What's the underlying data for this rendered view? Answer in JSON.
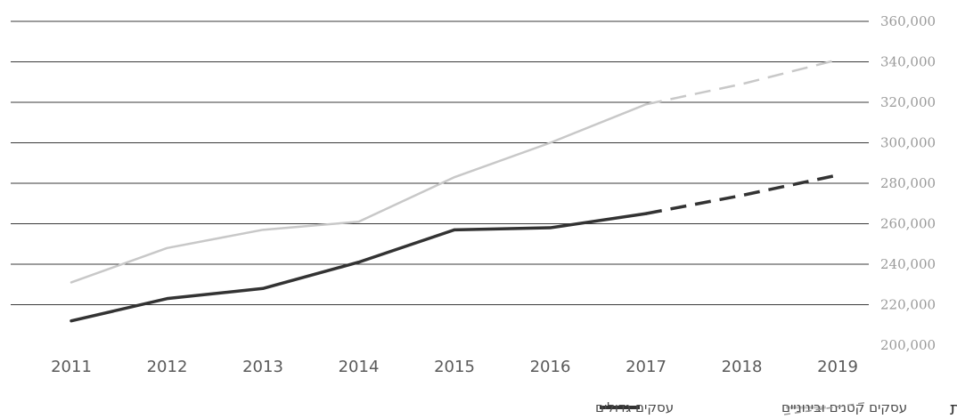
{
  "chart_data": {
    "type": "line",
    "x": [
      "2011",
      "2012",
      "2013",
      "2014",
      "2015",
      "2016",
      "2017",
      "2018",
      "2019"
    ],
    "y_ticks": [
      "200,000",
      "220,000",
      "240,000",
      "260,000",
      "280,000",
      "300,000",
      "320,000",
      "340,000",
      "360,000"
    ],
    "ylim": [
      200000,
      360000
    ],
    "y_axis_side": "right",
    "grid": true,
    "series": [
      {
        "name": "עסקים גדולים",
        "color": "#333333",
        "actual": [
          212000,
          223000,
          228000,
          241000,
          257000,
          258000,
          265000,
          null,
          null
        ],
        "forecast": [
          null,
          null,
          null,
          null,
          null,
          null,
          265000,
          274000,
          284000
        ]
      },
      {
        "name": "עסקים קטנים ובינוניים",
        "color": "#c8c8c8",
        "actual": [
          231000,
          248000,
          257000,
          261000,
          283000,
          300000,
          319000,
          null,
          null
        ],
        "forecast": [
          null,
          null,
          null,
          null,
          null,
          null,
          319000,
          329000,
          341000
        ]
      }
    ],
    "legend_position": "bottom",
    "forecast_label": "תחזית"
  }
}
